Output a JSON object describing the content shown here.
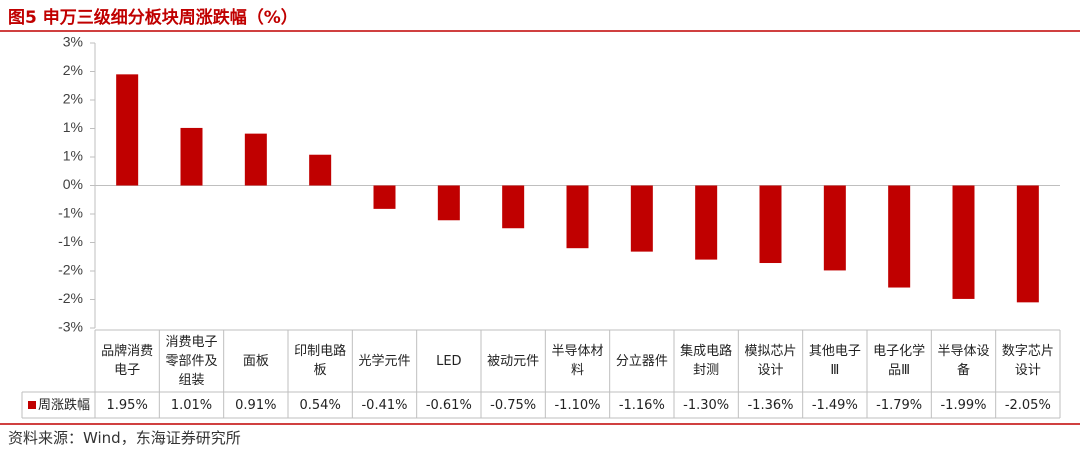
{
  "chart_data": {
    "type": "bar",
    "title": "图5 申万三级细分板块周涨跌幅（%）",
    "source": "资料来源：Wind，东海证券研究所",
    "categories": [
      "品牌消费电子",
      "消费电子零部件及组装",
      "面板",
      "印制电路板",
      "光学元件",
      "LED",
      "被动元件",
      "半导体材料",
      "分立器件",
      "集成电路封测",
      "模拟芯片设计",
      "其他电子Ⅲ",
      "电子化学品Ⅲ",
      "半导体设备",
      "数字芯片设计"
    ],
    "series": [
      {
        "name": "周涨跌幅",
        "color": "#c00000",
        "values": [
          1.95,
          1.01,
          0.91,
          0.54,
          -0.41,
          -0.61,
          -0.75,
          -1.1,
          -1.16,
          -1.3,
          -1.36,
          -1.49,
          -1.79,
          -1.99,
          -2.05
        ],
        "value_labels": [
          "1.95%",
          "1.01%",
          "0.91%",
          "0.54%",
          "-0.41%",
          "-0.61%",
          "-0.75%",
          "-1.10%",
          "-1.16%",
          "-1.30%",
          "-1.36%",
          "-1.49%",
          "-1.79%",
          "-1.99%",
          "-2.05%"
        ]
      }
    ],
    "ylim": [
      -2.5,
      2.5
    ],
    "yticks": [
      {
        "value": 2.5,
        "label": "3%"
      },
      {
        "value": 2.0,
        "label": "2%"
      },
      {
        "value": 1.5,
        "label": "2%"
      },
      {
        "value": 1.0,
        "label": "1%"
      },
      {
        "value": 0.5,
        "label": "1%"
      },
      {
        "value": 0,
        "label": "0%"
      },
      {
        "value": -0.5,
        "label": "-1%"
      },
      {
        "value": -1.0,
        "label": "-1%"
      },
      {
        "value": -1.5,
        "label": "-2%"
      },
      {
        "value": -2.0,
        "label": "-2%"
      },
      {
        "value": -2.5,
        "label": "-3%"
      }
    ]
  }
}
